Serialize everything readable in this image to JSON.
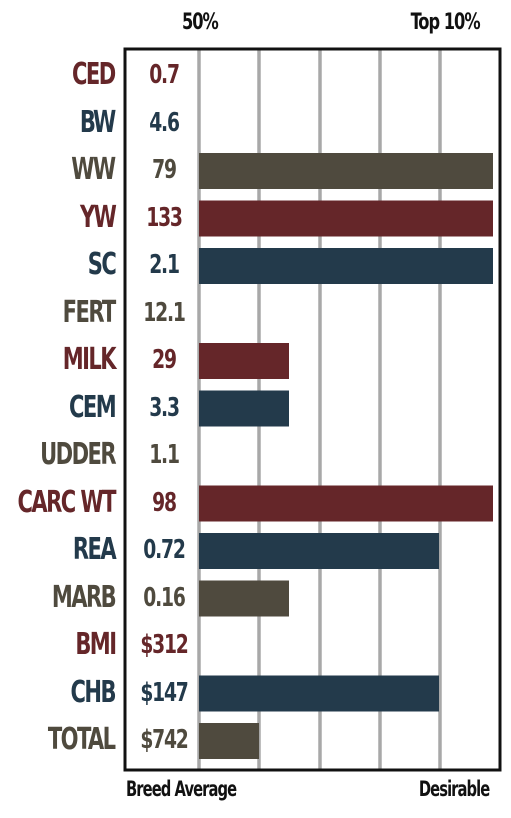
{
  "chart_data": {
    "type": "bar",
    "orientation": "horizontal",
    "top_labels": [
      "50%",
      "Top 10%"
    ],
    "bottom_labels": [
      "Breed Average",
      "Desirable"
    ],
    "colors": {
      "red": "#652629",
      "blue": "#233a4b",
      "gray": "#4f4a3e",
      "grid": "#a8a8a8",
      "frame": "#111111"
    },
    "xlim": [
      0,
      5
    ],
    "grid": true,
    "rows": [
      {
        "label": "CED",
        "value": "0.7",
        "bar": 0,
        "color": "red"
      },
      {
        "label": "BW",
        "value": "4.6",
        "bar": 0,
        "color": "blue"
      },
      {
        "label": "WW",
        "value": "79",
        "bar": 4.9,
        "color": "gray"
      },
      {
        "label": "YW",
        "value": "133",
        "bar": 4.9,
        "color": "red"
      },
      {
        "label": "SC",
        "value": "2.1",
        "bar": 4.9,
        "color": "blue"
      },
      {
        "label": "FERT",
        "value": "12.1",
        "bar": 0,
        "color": "gray"
      },
      {
        "label": "MILK",
        "value": "29",
        "bar": 1.5,
        "color": "red"
      },
      {
        "label": "CEM",
        "value": "3.3",
        "bar": 1.5,
        "color": "blue"
      },
      {
        "label": "UDDER",
        "value": "1.1",
        "bar": 0,
        "color": "gray"
      },
      {
        "label": "CARC WT",
        "value": "98",
        "bar": 4.9,
        "color": "red"
      },
      {
        "label": "REA",
        "value": "0.72",
        "bar": 4.0,
        "color": "blue"
      },
      {
        "label": "MARB",
        "value": "0.16",
        "bar": 1.5,
        "color": "gray"
      },
      {
        "label": "BMI",
        "value": "$312",
        "bar": 0,
        "color": "red"
      },
      {
        "label": "CHB",
        "value": "$147",
        "bar": 4.0,
        "color": "blue"
      },
      {
        "label": "TOTAL",
        "value": "$742",
        "bar": 1.0,
        "color": "gray"
      }
    ]
  }
}
